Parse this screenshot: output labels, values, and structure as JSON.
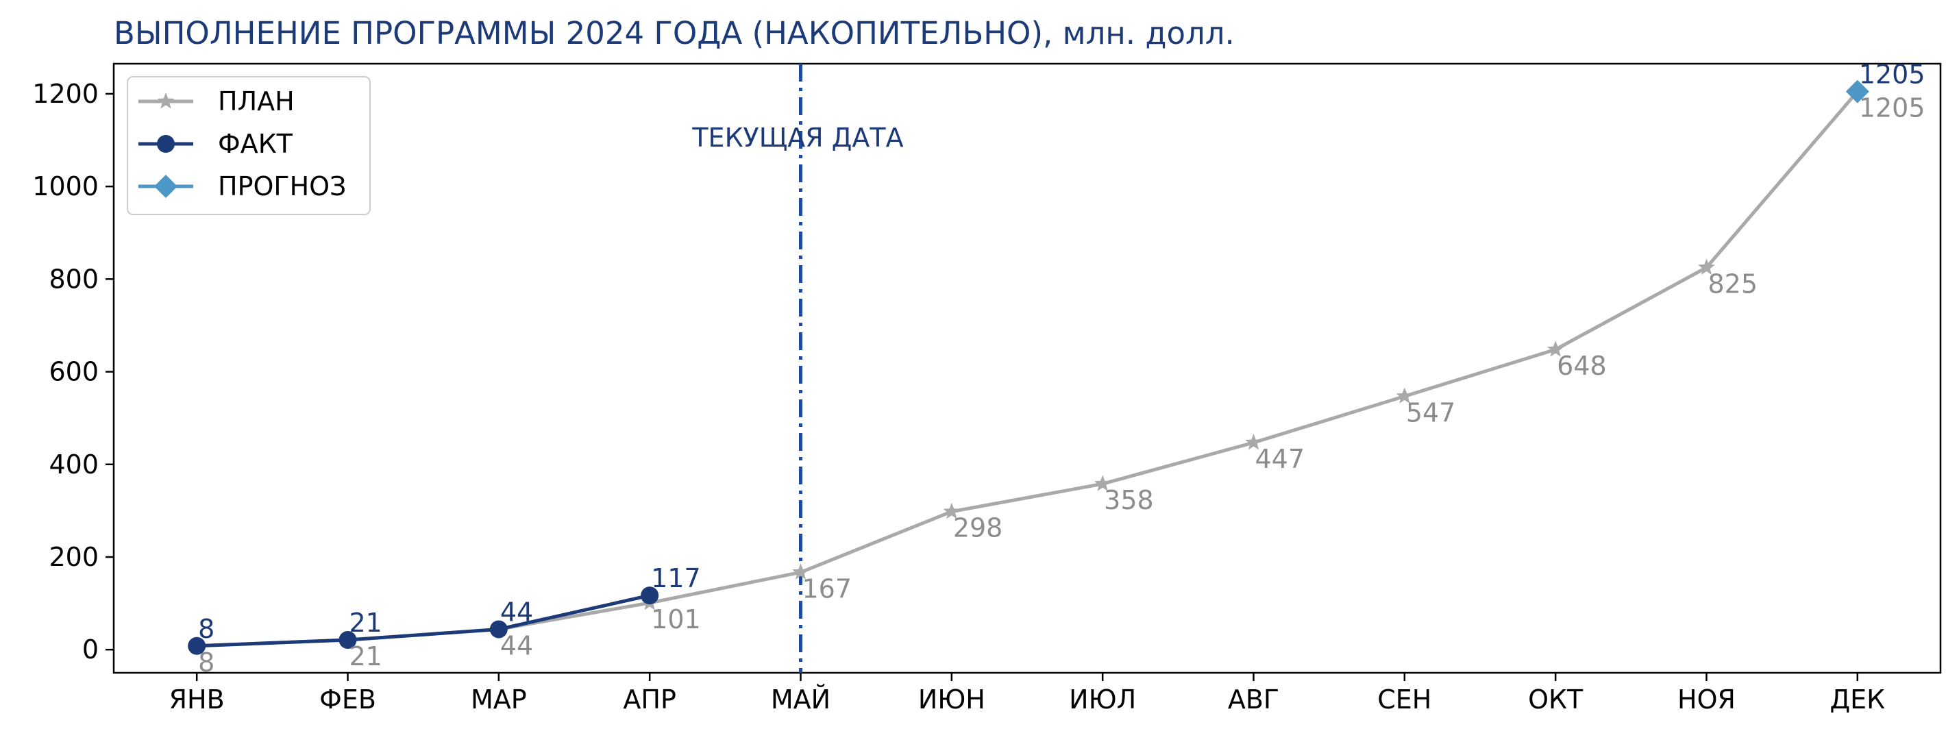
{
  "chart_data": {
    "type": "line",
    "title": "ВЫПОЛНЕНИЕ ПРОГРАММЫ 2024 ГОДА (НАКОПИТЕЛЬНО), млн. долл.",
    "xlabel": "",
    "ylabel": "",
    "categories": [
      "ЯНВ",
      "ФЕВ",
      "МАР",
      "АПР",
      "МАЙ",
      "ИЮН",
      "ИЮЛ",
      "АВГ",
      "СЕН",
      "ОКТ",
      "НОЯ",
      "ДЕК"
    ],
    "ylim": [
      -50,
      1265
    ],
    "yticks": [
      0,
      200,
      400,
      600,
      800,
      1000,
      1200
    ],
    "grid": false,
    "legend_position": "top-left",
    "series": [
      {
        "name": "ПЛАН",
        "color": "#a9a9a9",
        "label_color": "#8c8c8c",
        "marker": "star",
        "x": [
          0,
          1,
          2,
          3,
          4,
          5,
          6,
          7,
          8,
          9,
          10,
          11
        ],
        "values": [
          8,
          21,
          44,
          101,
          167,
          298,
          358,
          447,
          547,
          648,
          825,
          1205
        ]
      },
      {
        "name": "ФАКТ",
        "color": "#1c3a78",
        "label_color": "#1c3a78",
        "marker": "circle",
        "x": [
          0,
          1,
          2,
          3
        ],
        "values": [
          8,
          21,
          44,
          117
        ]
      },
      {
        "name": "ПРОГНОЗ",
        "color": "#4d97c6",
        "label_color": "#1c3a78",
        "marker": "diamond",
        "x": [
          11
        ],
        "values": [
          1205
        ]
      }
    ],
    "annotations": [
      {
        "text": "ТЕКУЩАЯ ДАТА",
        "category": "МАЙ",
        "type": "vertical-line",
        "color": "#1f4aa0"
      }
    ]
  }
}
